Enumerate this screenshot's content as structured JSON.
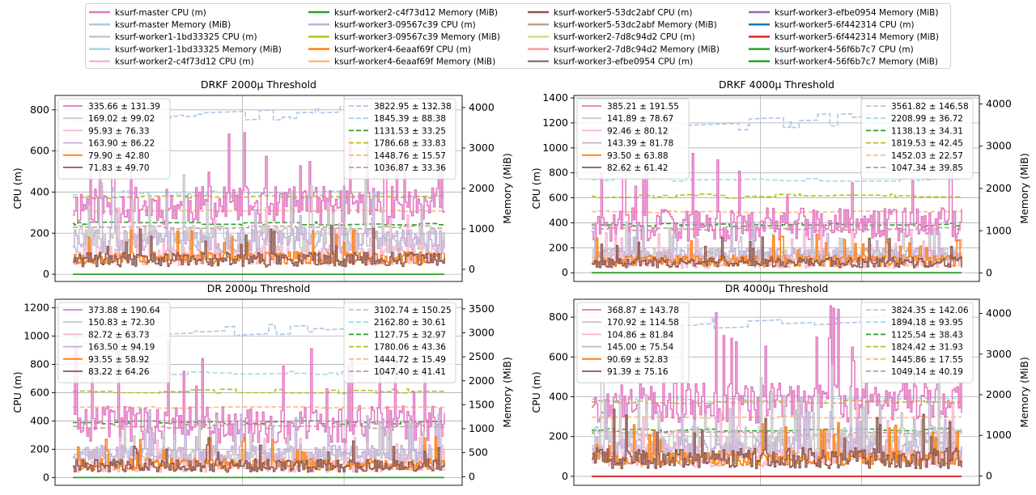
{
  "figure_legend": [
    {
      "name": "ksurf-master CPU (m)",
      "color": "#e377c2"
    },
    {
      "name": "ksurf-master Memory (MiB)",
      "color": "#aec7e8"
    },
    {
      "name": "ksurf-worker1-1bd33325 CPU (m)",
      "color": "#c7c7c7"
    },
    {
      "name": "ksurf-worker1-1bd33325 Memory (MiB)",
      "color": "#9edae5"
    },
    {
      "name": "ksurf-worker2-c4f73d12 CPU (m)",
      "color": "#f7b6d2"
    },
    {
      "name": "ksurf-worker2-c4f73d12 Memory (MiB)",
      "color": "#2ca02c"
    },
    {
      "name": "ksurf-worker3-09567c39 CPU (m)",
      "color": "#c5b0d5"
    },
    {
      "name": "ksurf-worker3-09567c39 Memory (MiB)",
      "color": "#bcbd22"
    },
    {
      "name": "ksurf-worker4-6eaaf69f CPU (m)",
      "color": "#ff7f0e"
    },
    {
      "name": "ksurf-worker4-6eaaf69f Memory (MiB)",
      "color": "#ffbb78"
    },
    {
      "name": "ksurf-worker5-53dc2abf CPU (m)",
      "color": "#8c564b"
    },
    {
      "name": "ksurf-worker5-53dc2abf Memory (MiB)",
      "color": "#c49c94"
    },
    {
      "name": "ksurf-worker2-7d8c94d2 CPU (m)",
      "color": "#dbdb8d"
    },
    {
      "name": "ksurf-worker2-7d8c94d2 Memory (MiB)",
      "color": "#ff9896"
    },
    {
      "name": "ksurf-worker3-efbe0954 CPU (m)",
      "color": "#7f7f7f"
    },
    {
      "name": "ksurf-worker3-efbe0954 Memory (MiB)",
      "color": "#9467bd"
    },
    {
      "name": "ksurf-worker5-6f442314 CPU (m)",
      "color": "#1f77b4"
    },
    {
      "name": "ksurf-worker5-6f442314 Memory (MiB)",
      "color": "#d62728"
    },
    {
      "name": "ksurf-worker4-56f6b7c7 CPU (m)",
      "color": "#2ca02c"
    },
    {
      "name": "ksurf-worker4-56f6b7c7 Memory (MiB)",
      "color": "#2ca02c"
    }
  ],
  "chart_data": [
    {
      "type": "line",
      "title": "DRKF 2000μ Threshold",
      "ylabel": "CPU (m)",
      "y2label": "Memory (MiB)",
      "ylim": [
        -35,
        870
      ],
      "y2lim": [
        -300,
        4300
      ],
      "yticks": [
        0,
        200,
        400,
        600,
        800
      ],
      "y2ticks": [
        0,
        1000,
        2000,
        3000,
        4000
      ],
      "grid": true,
      "legend_position": "upper left / upper right",
      "cpu_series": [
        {
          "label": "335.66 ± 131.39",
          "color": "#e377c2",
          "mean": 335.66,
          "std": 131.39
        },
        {
          "label": "169.02 ± 99.02",
          "color": "#c7c7c7",
          "mean": 169.02,
          "std": 99.02
        },
        {
          "label": "95.93 ± 76.33",
          "color": "#f7b6d2",
          "mean": 95.93,
          "std": 76.33
        },
        {
          "label": "163.90 ± 86.22",
          "color": "#c5b0d5",
          "mean": 163.9,
          "std": 86.22
        },
        {
          "label": "79.90 ± 42.80",
          "color": "#ff7f0e",
          "mean": 79.9,
          "std": 42.8
        },
        {
          "label": "71.83 ± 49.70",
          "color": "#8c564b",
          "mean": 71.83,
          "std": 49.7
        }
      ],
      "mem_series": [
        {
          "label": "3822.95 ± 132.38",
          "color": "#aec7e8",
          "mean": 3822.95,
          "std": 132.38
        },
        {
          "label": "1845.39 ± 88.38",
          "color": "#9edae5",
          "mean": 1845.39,
          "std": 88.38
        },
        {
          "label": "1131.53 ± 33.25",
          "color": "#2ca02c",
          "mean": 1131.53,
          "std": 33.25
        },
        {
          "label": "1786.68 ± 33.83",
          "color": "#bcbd22",
          "mean": 1786.68,
          "std": 33.83
        },
        {
          "label": "1448.76 ± 15.57",
          "color": "#ffbb78",
          "mean": 1448.76,
          "std": 15.57
        },
        {
          "label": "1036.87 ± 33.36",
          "color": "#c49c94",
          "mean": 1036.87,
          "std": 33.36
        }
      ]
    },
    {
      "type": "line",
      "title": "DRKF 4000μ Threshold",
      "ylabel": "CPU (m)",
      "y2label": "Memory (MiB)",
      "ylim": [
        -70,
        1420
      ],
      "y2lim": [
        -200,
        4200
      ],
      "yticks": [
        0,
        200,
        400,
        600,
        800,
        1000,
        1200,
        1400
      ],
      "y2ticks": [
        0,
        1000,
        2000,
        3000,
        4000
      ],
      "grid": true,
      "legend_position": "upper left / upper right",
      "cpu_series": [
        {
          "label": "385.21 ± 191.55",
          "color": "#e377c2",
          "mean": 385.21,
          "std": 191.55
        },
        {
          "label": "141.89 ± 78.67",
          "color": "#c7c7c7",
          "mean": 141.89,
          "std": 78.67
        },
        {
          "label": "92.46 ± 80.12",
          "color": "#f7b6d2",
          "mean": 92.46,
          "std": 80.12
        },
        {
          "label": "143.39 ± 81.78",
          "color": "#c5b0d5",
          "mean": 143.39,
          "std": 81.78
        },
        {
          "label": "93.50 ± 63.88",
          "color": "#ff7f0e",
          "mean": 93.5,
          "std": 63.88
        },
        {
          "label": "82.62 ± 61.42",
          "color": "#8c564b",
          "mean": 82.62,
          "std": 61.42
        }
      ],
      "mem_series": [
        {
          "label": "3561.82 ± 146.58",
          "color": "#aec7e8",
          "mean": 3561.82,
          "std": 146.58
        },
        {
          "label": "2208.99 ± 36.72",
          "color": "#9edae5",
          "mean": 2208.99,
          "std": 36.72
        },
        {
          "label": "1138.13 ± 34.31",
          "color": "#2ca02c",
          "mean": 1138.13,
          "std": 34.31
        },
        {
          "label": "1819.53 ± 42.45",
          "color": "#bcbd22",
          "mean": 1819.53,
          "std": 42.45
        },
        {
          "label": "1452.03 ± 22.57",
          "color": "#ffbb78",
          "mean": 1452.03,
          "std": 22.57
        },
        {
          "label": "1047.34 ± 39.85",
          "color": "#c49c94",
          "mean": 1047.34,
          "std": 39.85
        }
      ]
    },
    {
      "type": "line",
      "title": "DR 2000μ Threshold",
      "ylabel": "CPU (m)",
      "y2label": "Memory (MiB)",
      "ylim": [
        -55,
        1260
      ],
      "y2lim": [
        -180,
        3700
      ],
      "yticks": [
        0,
        200,
        400,
        600,
        800,
        1000,
        1200
      ],
      "y2ticks": [
        0,
        500,
        1000,
        1500,
        2000,
        2500,
        3000,
        3500
      ],
      "grid": true,
      "legend_position": "upper left / upper right",
      "cpu_series": [
        {
          "label": "373.88 ± 190.64",
          "color": "#e377c2",
          "mean": 373.88,
          "std": 190.64
        },
        {
          "label": "150.83 ± 72.30",
          "color": "#c7c7c7",
          "mean": 150.83,
          "std": 72.3
        },
        {
          "label": "82.72 ± 63.73",
          "color": "#f7b6d2",
          "mean": 82.72,
          "std": 63.73
        },
        {
          "label": "163.50 ± 94.19",
          "color": "#c5b0d5",
          "mean": 163.5,
          "std": 94.19
        },
        {
          "label": "93.55 ± 58.92",
          "color": "#ff7f0e",
          "mean": 93.55,
          "std": 58.92
        },
        {
          "label": "83.22 ± 64.26",
          "color": "#8c564b",
          "mean": 83.22,
          "std": 64.26
        }
      ],
      "mem_series": [
        {
          "label": "3102.74 ± 150.25",
          "color": "#aec7e8",
          "mean": 3102.74,
          "std": 150.25
        },
        {
          "label": "2162.80 ± 30.61",
          "color": "#9edae5",
          "mean": 2162.8,
          "std": 30.61
        },
        {
          "label": "1127.75 ± 32.97",
          "color": "#2ca02c",
          "mean": 1127.75,
          "std": 32.97
        },
        {
          "label": "1780.06 ± 43.36",
          "color": "#bcbd22",
          "mean": 1780.06,
          "std": 43.36
        },
        {
          "label": "1444.72 ± 15.49",
          "color": "#ffbb78",
          "mean": 1444.72,
          "std": 15.49
        },
        {
          "label": "1047.40 ± 41.41",
          "color": "#c49c94",
          "mean": 1047.4,
          "std": 41.41
        }
      ]
    },
    {
      "type": "line",
      "title": "DR 4000μ Threshold",
      "ylabel": "CPU (m)",
      "y2label": "Memory (MiB)",
      "ylim": [
        -45,
        890
      ],
      "y2lim": [
        -230,
        4350
      ],
      "yticks": [
        0,
        200,
        400,
        600,
        800
      ],
      "y2ticks": [
        0,
        1000,
        2000,
        3000,
        4000
      ],
      "grid": true,
      "legend_position": "upper left / upper right",
      "cpu_series": [
        {
          "label": "368.87 ± 143.78",
          "color": "#e377c2",
          "mean": 368.87,
          "std": 143.78
        },
        {
          "label": "170.92 ± 114.58",
          "color": "#c7c7c7",
          "mean": 170.92,
          "std": 114.58
        },
        {
          "label": "104.86 ± 81.84",
          "color": "#f7b6d2",
          "mean": 104.86,
          "std": 81.84
        },
        {
          "label": "145.00 ± 75.54",
          "color": "#c5b0d5",
          "mean": 145.0,
          "std": 75.54
        },
        {
          "label": "90.69 ± 52.83",
          "color": "#ff7f0e",
          "mean": 90.69,
          "std": 52.83
        },
        {
          "label": "91.39 ± 75.16",
          "color": "#8c564b",
          "mean": 91.39,
          "std": 75.16
        }
      ],
      "mem_series": [
        {
          "label": "3824.35 ± 142.06",
          "color": "#aec7e8",
          "mean": 3824.35,
          "std": 142.06
        },
        {
          "label": "1894.18 ± 93.95",
          "color": "#9edae5",
          "mean": 1894.18,
          "std": 93.95
        },
        {
          "label": "1125.54 ± 38.43",
          "color": "#2ca02c",
          "mean": 1125.54,
          "std": 38.43
        },
        {
          "label": "1824.42 ± 31.93",
          "color": "#bcbd22",
          "mean": 1824.42,
          "std": 31.93
        },
        {
          "label": "1445.86 ± 17.55",
          "color": "#ffbb78",
          "mean": 1445.86,
          "std": 17.55
        },
        {
          "label": "1049.14 ± 40.19",
          "color": "#c49c94",
          "mean": 1049.14,
          "std": 40.19
        }
      ]
    }
  ]
}
